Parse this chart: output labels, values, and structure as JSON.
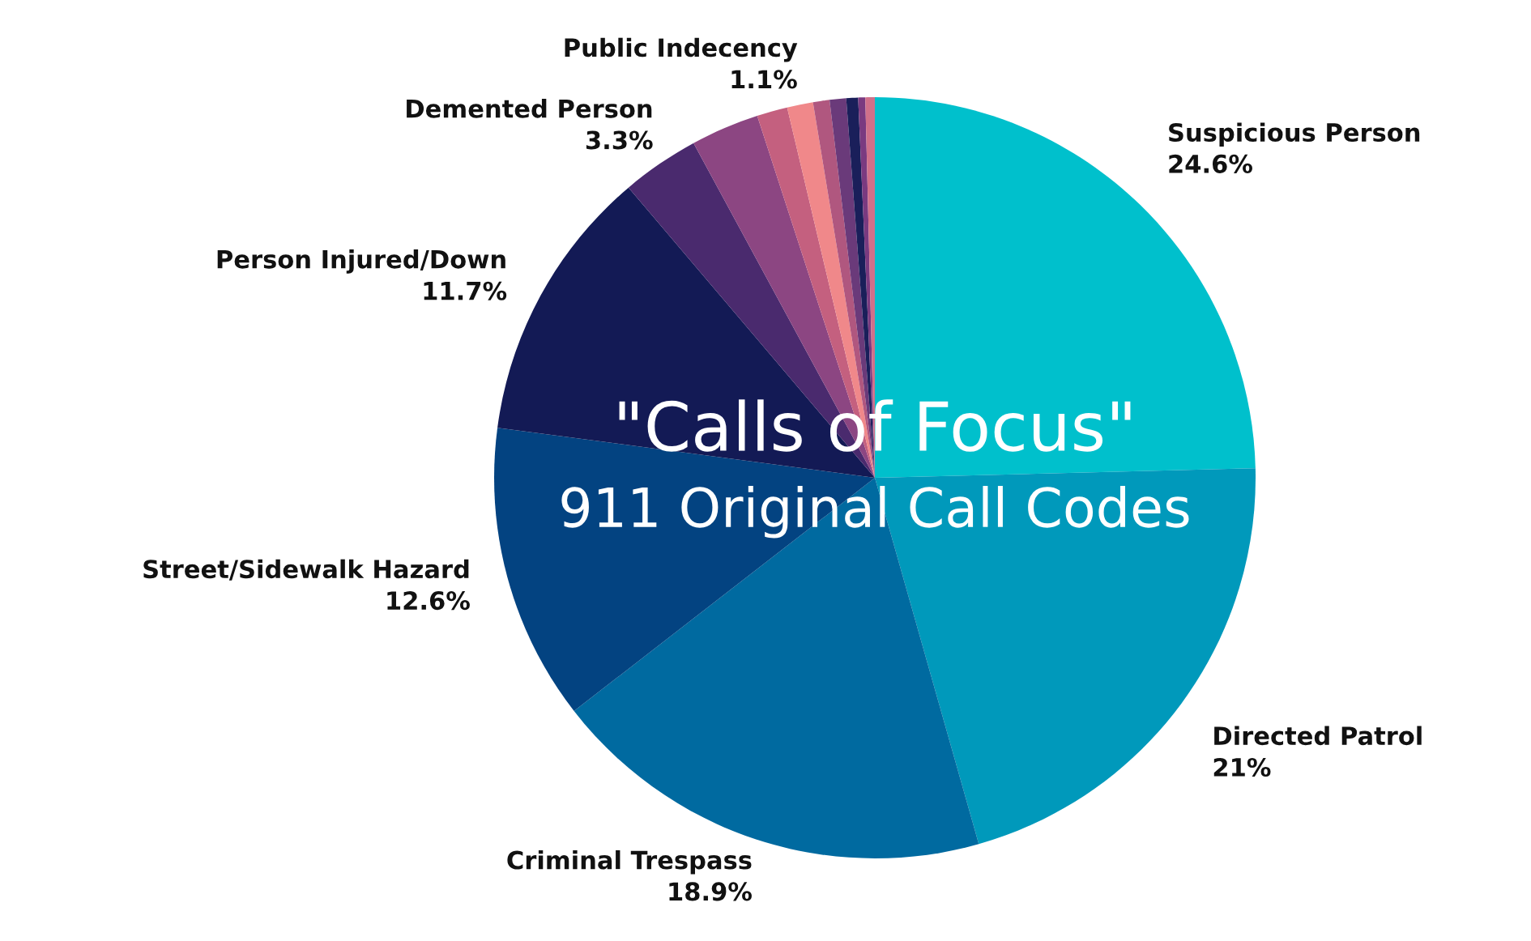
{
  "chart_data": {
    "type": "pie",
    "title": "\"Calls of Focus\"",
    "subtitle": "911 Original Call Codes",
    "categories": [
      "Suspicious Person",
      "Directed Patrol",
      "Criminal Trespass",
      "Street/Sidewalk Hazard",
      "Person Injured/Down",
      "Demented Person",
      null,
      null,
      "Public Indecency",
      null,
      null,
      null,
      null,
      null
    ],
    "values": [
      24.6,
      21,
      18.9,
      12.6,
      11.7,
      3.3,
      2.9,
      1.3,
      1.1,
      0.7,
      0.7,
      0.5,
      0.3,
      0.4
    ],
    "value_labels": [
      "24.6%",
      "21%",
      "18.9%",
      "12.6%",
      "11.7%",
      "3.3%",
      null,
      null,
      "1.1%",
      null,
      null,
      null,
      null,
      null
    ],
    "colors": [
      "#00c0cc",
      "#0099bb",
      "#006aa0",
      "#034381",
      "#131a55",
      "#4a2a6e",
      "#8c4682",
      "#c4607f",
      "#f0888a",
      "#b0577f",
      "#6a3a7a",
      "#1a1f5a",
      "#7a3a80",
      "#d0708a"
    ]
  }
}
